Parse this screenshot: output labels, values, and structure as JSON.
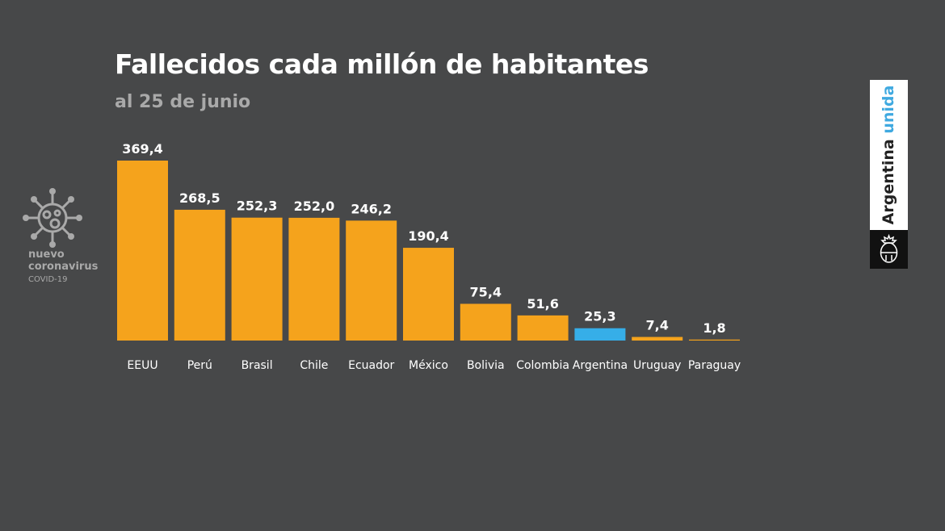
{
  "title": "Fallecidos cada millón de habitantes",
  "subtitle": "al 25 de junio",
  "badge": {
    "line1": "nuevo",
    "line2": "coronavirus",
    "line3": "COVID-19",
    "icon": "virus-icon"
  },
  "brand": {
    "word1": "Argentina",
    "word2": "unida",
    "accent_color": "#3fa9e0",
    "emblem": "coat-of-arms-icon"
  },
  "chart_data": {
    "type": "bar",
    "title": "Fallecidos cada millón de habitantes",
    "subtitle": "al 25 de junio",
    "categories": [
      "EEUU",
      "Perú",
      "Brasil",
      "Chile",
      "Ecuador",
      "México",
      "Bolivia",
      "Colombia",
      "Argentina",
      "Uruguay",
      "Paraguay"
    ],
    "values": [
      369.4,
      268.5,
      252.3,
      252.0,
      246.2,
      190.4,
      75.4,
      51.6,
      25.3,
      7.4,
      1.8
    ],
    "value_labels": [
      "369,4",
      "268,5",
      "252,3",
      "252,0",
      "246,2",
      "190,4",
      "75,4",
      "51,6",
      "25,3",
      "7,4",
      "1,8"
    ],
    "bar_color": "#f5a31c",
    "highlight_category": "Argentina",
    "highlight_color": "#36aee8",
    "grid": false,
    "legend": "none"
  }
}
